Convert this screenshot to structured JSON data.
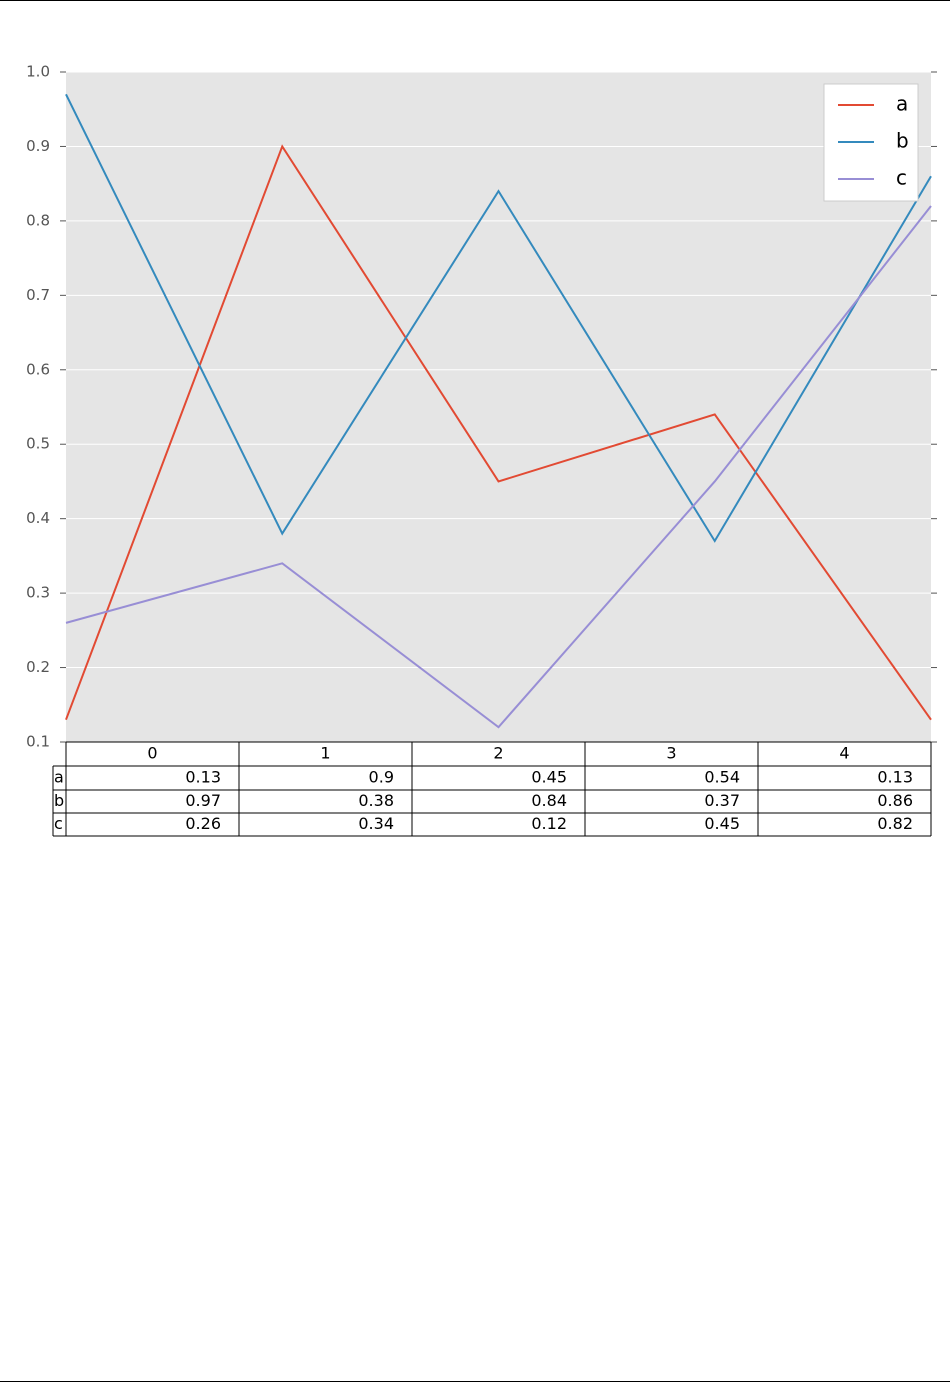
{
  "chart_data": {
    "type": "line",
    "x": [
      0,
      1,
      2,
      3,
      4
    ],
    "xlim": [
      0,
      4
    ],
    "ylim": [
      0.1,
      1
    ],
    "yticks": [
      0.1,
      0.2,
      0.3,
      0.4,
      0.5,
      0.6,
      0.7,
      0.8,
      0.9,
      {
        "value": 1,
        "label": "1.0"
      }
    ],
    "grid": true,
    "legend": "upper right",
    "series": [
      {
        "name": "a",
        "color": "#E24A33",
        "values": [
          0.13,
          0.9,
          0.45,
          0.54,
          0.13
        ]
      },
      {
        "name": "b",
        "color": "#348ABD",
        "values": [
          0.97,
          0.38,
          0.84,
          0.37,
          0.86
        ]
      },
      {
        "name": "c",
        "color": "#988ED5",
        "values": [
          0.26,
          0.34,
          0.12,
          0.45,
          0.82
        ]
      }
    ]
  }
}
